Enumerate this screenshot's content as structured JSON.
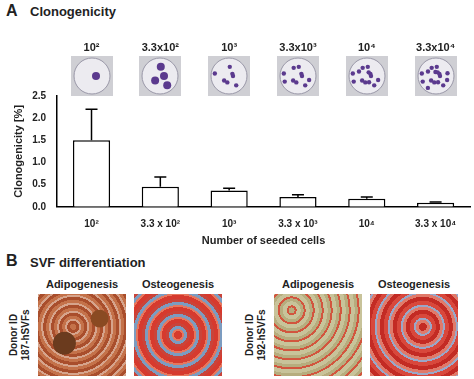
{
  "chart_data": {
    "type": "bar",
    "title": "Clonogenicity",
    "categories": [
      "10²",
      "3.3 x 10²",
      "10³",
      "3.3 x 10³",
      "10⁴",
      "3.3 x 10⁴"
    ],
    "values": [
      1.5,
      0.45,
      0.37,
      0.22,
      0.18,
      0.09
    ],
    "errors": [
      0.7,
      0.22,
      0.05,
      0.05,
      0.04,
      0.02
    ],
    "color": "#ffffff",
    "x_label": "Number of seeded cells",
    "y_label": "Clonogenicity [%]",
    "ylim": [
      0,
      2.5
    ],
    "yticks": [
      {
        "value": 0,
        "label": "0.0"
      },
      0.5,
      {
        "value": 1,
        "label": "1.0"
      },
      1.5,
      {
        "value": 2,
        "label": "2.0"
      },
      2.5
    ],
    "grid": false
  },
  "figure": {
    "panel_a": {
      "label": "A",
      "inset_labels": [
        "10²",
        "3.3x10²",
        "10³",
        "3.3x10³",
        "10⁴",
        "3.3x10⁴"
      ]
    },
    "panel_b": {
      "label": "B",
      "title": "SVF differentiation",
      "row_label": "Donor ID",
      "donors": [
        {
          "id": "187-hSVFs",
          "images": [
            "Adipogenesis",
            "Osteogenesis"
          ]
        },
        {
          "id": "192-hSVFs",
          "images": [
            "Adipogenesis",
            "Osteogenesis"
          ]
        }
      ]
    }
  }
}
